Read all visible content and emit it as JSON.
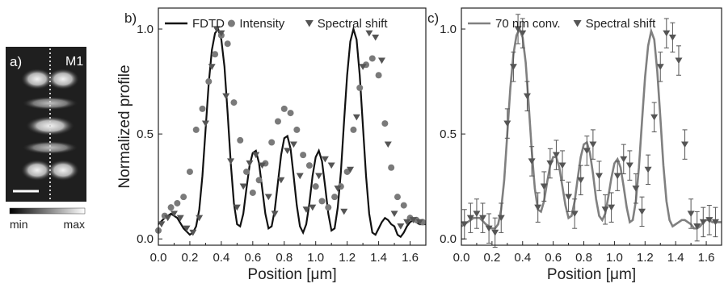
{
  "panel_a": {
    "label": "a)",
    "mode_label": "M1",
    "colorbar_min": "min",
    "colorbar_max": "max"
  },
  "chart_data": [
    {
      "type": "line",
      "panel": "b)",
      "xlabel": "Position [μm]",
      "ylabel": "Normalized profile",
      "xlim": [
        0,
        1.7
      ],
      "ylim": [
        -0.03,
        1.1
      ],
      "xticks": [
        "0.0",
        "0.2",
        "0.4",
        "0.6",
        "0.8",
        "1.0",
        "1.2",
        "1.4",
        "1.6"
      ],
      "yticks": [
        "0.0",
        "0.5",
        "1.0"
      ],
      "grid": false,
      "legend": "top",
      "series": [
        {
          "name": "FDTD",
          "type": "line",
          "color": "#111111",
          "x": [
            0.0,
            0.04,
            0.08,
            0.12,
            0.16,
            0.2,
            0.22,
            0.24,
            0.26,
            0.28,
            0.3,
            0.32,
            0.34,
            0.36,
            0.38,
            0.4,
            0.42,
            0.44,
            0.46,
            0.48,
            0.5,
            0.52,
            0.54,
            0.56,
            0.58,
            0.6,
            0.62,
            0.64,
            0.66,
            0.68,
            0.7,
            0.72,
            0.74,
            0.76,
            0.78,
            0.8,
            0.82,
            0.84,
            0.86,
            0.88,
            0.9,
            0.92,
            0.94,
            0.96,
            0.98,
            1.0,
            1.02,
            1.04,
            1.06,
            1.08,
            1.1,
            1.12,
            1.14,
            1.16,
            1.18,
            1.2,
            1.22,
            1.24,
            1.26,
            1.28,
            1.3,
            1.32,
            1.34,
            1.36,
            1.38,
            1.4,
            1.42,
            1.44,
            1.46,
            1.48,
            1.5,
            1.52,
            1.54,
            1.56,
            1.58,
            1.6,
            1.62,
            1.64,
            1.66,
            1.68,
            1.7
          ],
          "y": [
            0.07,
            0.1,
            0.12,
            0.1,
            0.05,
            0.02,
            0.03,
            0.06,
            0.14,
            0.3,
            0.52,
            0.74,
            0.9,
            0.98,
            1.0,
            0.95,
            0.82,
            0.6,
            0.36,
            0.17,
            0.07,
            0.06,
            0.12,
            0.24,
            0.35,
            0.41,
            0.42,
            0.36,
            0.24,
            0.12,
            0.05,
            0.06,
            0.14,
            0.27,
            0.4,
            0.48,
            0.49,
            0.43,
            0.3,
            0.16,
            0.06,
            0.03,
            0.07,
            0.17,
            0.3,
            0.39,
            0.42,
            0.37,
            0.25,
            0.12,
            0.04,
            0.05,
            0.15,
            0.32,
            0.56,
            0.78,
            0.94,
            1.0,
            0.95,
            0.78,
            0.54,
            0.3,
            0.12,
            0.03,
            0.02,
            0.05,
            0.08,
            0.1,
            0.09,
            0.07,
            0.06,
            0.02,
            0.01,
            0.03,
            0.06,
            0.08,
            0.09,
            0.08,
            0.07,
            0.07,
            0.07
          ]
        },
        {
          "name": "Intensity",
          "type": "scatter",
          "marker": "circle",
          "color": "#7a7a7a",
          "x": [
            0.0,
            0.04,
            0.08,
            0.12,
            0.16,
            0.2,
            0.24,
            0.28,
            0.32,
            0.36,
            0.4,
            0.44,
            0.48,
            0.52,
            0.56,
            0.6,
            0.64,
            0.68,
            0.72,
            0.76,
            0.8,
            0.84,
            0.88,
            0.92,
            0.96,
            1.0,
            1.04,
            1.08,
            1.12,
            1.16,
            1.2,
            1.24,
            1.28,
            1.32,
            1.36,
            1.4,
            1.44,
            1.48,
            1.52,
            1.56,
            1.6,
            1.64,
            1.68
          ],
          "y": [
            0.04,
            0.11,
            0.15,
            0.17,
            0.2,
            0.32,
            0.52,
            0.62,
            0.75,
            0.88,
            0.97,
            0.93,
            0.65,
            0.47,
            0.32,
            0.22,
            0.28,
            0.36,
            0.46,
            0.56,
            0.62,
            0.6,
            0.52,
            0.4,
            0.35,
            0.25,
            0.18,
            0.15,
            0.2,
            0.25,
            0.32,
            0.52,
            0.72,
            0.83,
            0.86,
            0.78,
            0.55,
            0.34,
            0.2,
            0.16,
            0.1,
            0.09,
            0.08
          ]
        },
        {
          "name": "Spectral shift",
          "type": "scatter",
          "marker": "triangle-down",
          "color": "#555555",
          "x": [
            0.02,
            0.06,
            0.1,
            0.14,
            0.18,
            0.22,
            0.26,
            0.3,
            0.34,
            0.37,
            0.4,
            0.43,
            0.46,
            0.5,
            0.54,
            0.58,
            0.62,
            0.66,
            0.7,
            0.74,
            0.78,
            0.82,
            0.86,
            0.9,
            0.94,
            0.98,
            1.02,
            1.06,
            1.1,
            1.14,
            1.18,
            1.22,
            1.26,
            1.3,
            1.34,
            1.38,
            1.42,
            1.46,
            1.5,
            1.54,
            1.58,
            1.62,
            1.66
          ],
          "y": [
            0.07,
            0.1,
            0.12,
            0.1,
            0.05,
            0.03,
            0.1,
            0.55,
            0.82,
            1.0,
            0.98,
            0.68,
            0.37,
            0.15,
            0.25,
            0.36,
            0.4,
            0.35,
            0.2,
            0.12,
            0.28,
            0.42,
            0.45,
            0.3,
            0.14,
            0.15,
            0.3,
            0.38,
            0.35,
            0.24,
            0.13,
            0.33,
            0.58,
            0.82,
            0.98,
            0.96,
            0.85,
            0.45,
            0.12,
            0.06,
            0.08,
            0.09,
            0.08
          ]
        }
      ]
    },
    {
      "type": "line",
      "panel": "c)",
      "xlabel": "Position [μm]",
      "ylabel": "",
      "xlim": [
        0,
        1.7
      ],
      "ylim": [
        -0.03,
        1.1
      ],
      "xticks": [
        "0.0",
        "0.2",
        "0.4",
        "0.6",
        "0.8",
        "1.0",
        "1.2",
        "1.4",
        "1.6"
      ],
      "yticks": [
        "0.0",
        "0.5",
        "1.0"
      ],
      "grid": false,
      "legend": "top",
      "series": [
        {
          "name": "70 nm conv.",
          "type": "line",
          "color": "#808080",
          "x": [
            0.0,
            0.04,
            0.08,
            0.12,
            0.16,
            0.2,
            0.22,
            0.24,
            0.26,
            0.28,
            0.3,
            0.32,
            0.34,
            0.36,
            0.38,
            0.4,
            0.42,
            0.44,
            0.46,
            0.48,
            0.5,
            0.52,
            0.54,
            0.56,
            0.58,
            0.6,
            0.62,
            0.64,
            0.66,
            0.68,
            0.7,
            0.72,
            0.74,
            0.76,
            0.78,
            0.8,
            0.82,
            0.84,
            0.86,
            0.88,
            0.9,
            0.92,
            0.94,
            0.96,
            0.98,
            1.0,
            1.02,
            1.04,
            1.06,
            1.08,
            1.1,
            1.12,
            1.14,
            1.16,
            1.18,
            1.2,
            1.22,
            1.24,
            1.26,
            1.28,
            1.3,
            1.32,
            1.34,
            1.36,
            1.38,
            1.4,
            1.42,
            1.44,
            1.46,
            1.48,
            1.5,
            1.52,
            1.54,
            1.56,
            1.58,
            1.6,
            1.62,
            1.64,
            1.66,
            1.68,
            1.7
          ],
          "y": [
            0.06,
            0.08,
            0.1,
            0.1,
            0.07,
            0.05,
            0.05,
            0.07,
            0.14,
            0.28,
            0.5,
            0.72,
            0.88,
            0.97,
            1.0,
            0.96,
            0.84,
            0.64,
            0.42,
            0.24,
            0.14,
            0.13,
            0.18,
            0.27,
            0.35,
            0.39,
            0.39,
            0.34,
            0.25,
            0.16,
            0.1,
            0.11,
            0.18,
            0.29,
            0.39,
            0.45,
            0.46,
            0.41,
            0.31,
            0.19,
            0.11,
            0.09,
            0.12,
            0.2,
            0.29,
            0.36,
            0.38,
            0.34,
            0.25,
            0.15,
            0.08,
            0.09,
            0.18,
            0.34,
            0.56,
            0.77,
            0.92,
            0.99,
            0.95,
            0.8,
            0.58,
            0.35,
            0.18,
            0.09,
            0.06,
            0.07,
            0.08,
            0.09,
            0.09,
            0.08,
            0.07,
            0.05,
            0.05,
            0.06,
            0.08,
            0.09,
            0.09,
            0.08,
            0.08,
            0.08,
            0.08
          ]
        },
        {
          "name": "Spectral shift",
          "type": "scatter",
          "marker": "triangle-down",
          "color": "#555555",
          "error_bar": 0.07,
          "x": [
            0.02,
            0.06,
            0.1,
            0.14,
            0.18,
            0.22,
            0.26,
            0.3,
            0.34,
            0.37,
            0.4,
            0.43,
            0.46,
            0.5,
            0.54,
            0.58,
            0.62,
            0.66,
            0.7,
            0.74,
            0.78,
            0.82,
            0.86,
            0.9,
            0.94,
            0.98,
            1.02,
            1.06,
            1.1,
            1.14,
            1.18,
            1.22,
            1.26,
            1.3,
            1.34,
            1.38,
            1.42,
            1.46,
            1.5,
            1.54,
            1.58,
            1.62,
            1.66
          ],
          "y": [
            0.07,
            0.1,
            0.12,
            0.1,
            0.05,
            0.03,
            0.1,
            0.55,
            0.82,
            1.0,
            0.98,
            0.68,
            0.37,
            0.15,
            0.25,
            0.36,
            0.4,
            0.35,
            0.2,
            0.12,
            0.28,
            0.42,
            0.45,
            0.3,
            0.14,
            0.15,
            0.3,
            0.38,
            0.35,
            0.24,
            0.13,
            0.33,
            0.58,
            0.82,
            0.98,
            0.96,
            0.85,
            0.45,
            0.12,
            0.06,
            0.08,
            0.09,
            0.08
          ]
        }
      ]
    }
  ]
}
